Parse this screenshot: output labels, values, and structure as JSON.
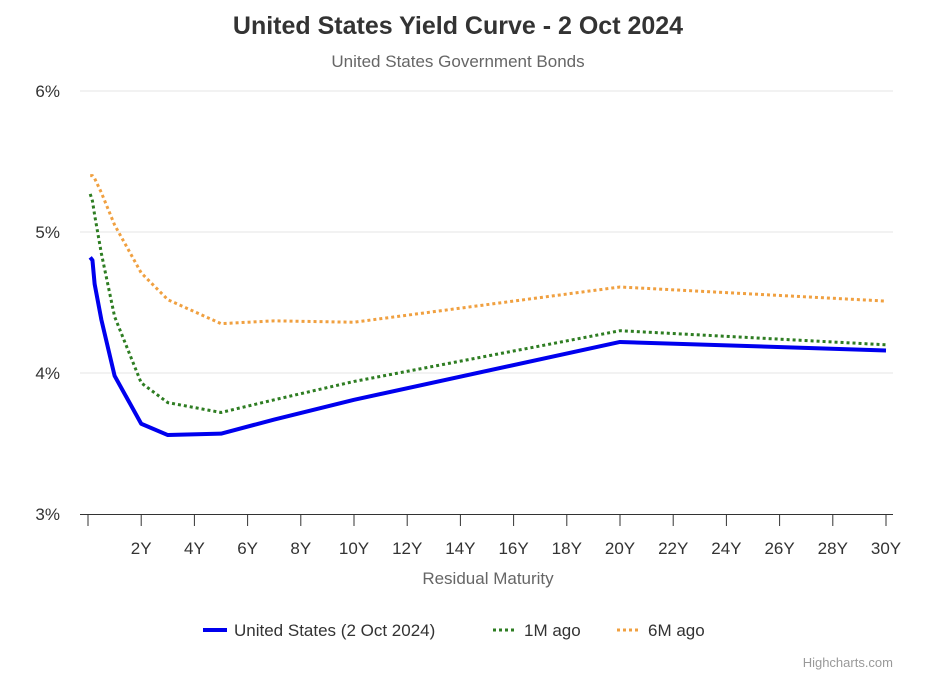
{
  "chart_data": {
    "type": "line",
    "title": "United States Yield Curve - 2 Oct 2024",
    "subtitle": "United States Government Bonds",
    "xlabel": "Residual Maturity",
    "ylabel": "",
    "xlim": [
      0,
      30
    ],
    "ylim": [
      3,
      6
    ],
    "y_ticks": [
      {
        "v": 3,
        "label": "3%"
      },
      {
        "v": 4,
        "label": "4%"
      },
      {
        "v": 5,
        "label": "5%"
      },
      {
        "v": 6,
        "label": "6%"
      }
    ],
    "x_ticks": [
      {
        "v": 2,
        "label": "2Y"
      },
      {
        "v": 4,
        "label": "4Y"
      },
      {
        "v": 6,
        "label": "6Y"
      },
      {
        "v": 8,
        "label": "8Y"
      },
      {
        "v": 10,
        "label": "10Y"
      },
      {
        "v": 12,
        "label": "12Y"
      },
      {
        "v": 14,
        "label": "14Y"
      },
      {
        "v": 16,
        "label": "16Y"
      },
      {
        "v": 18,
        "label": "18Y"
      },
      {
        "v": 20,
        "label": "20Y"
      },
      {
        "v": 22,
        "label": "22Y"
      },
      {
        "v": 24,
        "label": "24Y"
      },
      {
        "v": 26,
        "label": "26Y"
      },
      {
        "v": 28,
        "label": "28Y"
      },
      {
        "v": 30,
        "label": "30Y"
      }
    ],
    "grid": true,
    "legend_position": "bottom",
    "x": [
      0.083,
      0.167,
      0.25,
      0.5,
      1,
      2,
      3,
      5,
      7,
      10,
      20,
      30
    ],
    "series": [
      {
        "name": "United States (2 Oct 2024)",
        "color": "#0000ee",
        "style": "solid",
        "values": [
          4.82,
          4.8,
          4.63,
          4.38,
          3.98,
          3.64,
          3.56,
          3.57,
          3.67,
          3.81,
          4.22,
          4.16
        ]
      },
      {
        "name": "1M ago",
        "color": "#2e7d22",
        "style": "dotted",
        "values": [
          5.27,
          5.22,
          5.12,
          4.85,
          4.4,
          3.93,
          3.79,
          3.72,
          3.81,
          3.94,
          4.3,
          4.2
        ]
      },
      {
        "name": "6M ago",
        "color": "#f0a040",
        "style": "dotted",
        "values": [
          5.4,
          5.4,
          5.38,
          5.28,
          5.05,
          4.71,
          4.52,
          4.35,
          4.37,
          4.36,
          4.61,
          4.51
        ]
      }
    ]
  },
  "credits": "Highcharts.com"
}
